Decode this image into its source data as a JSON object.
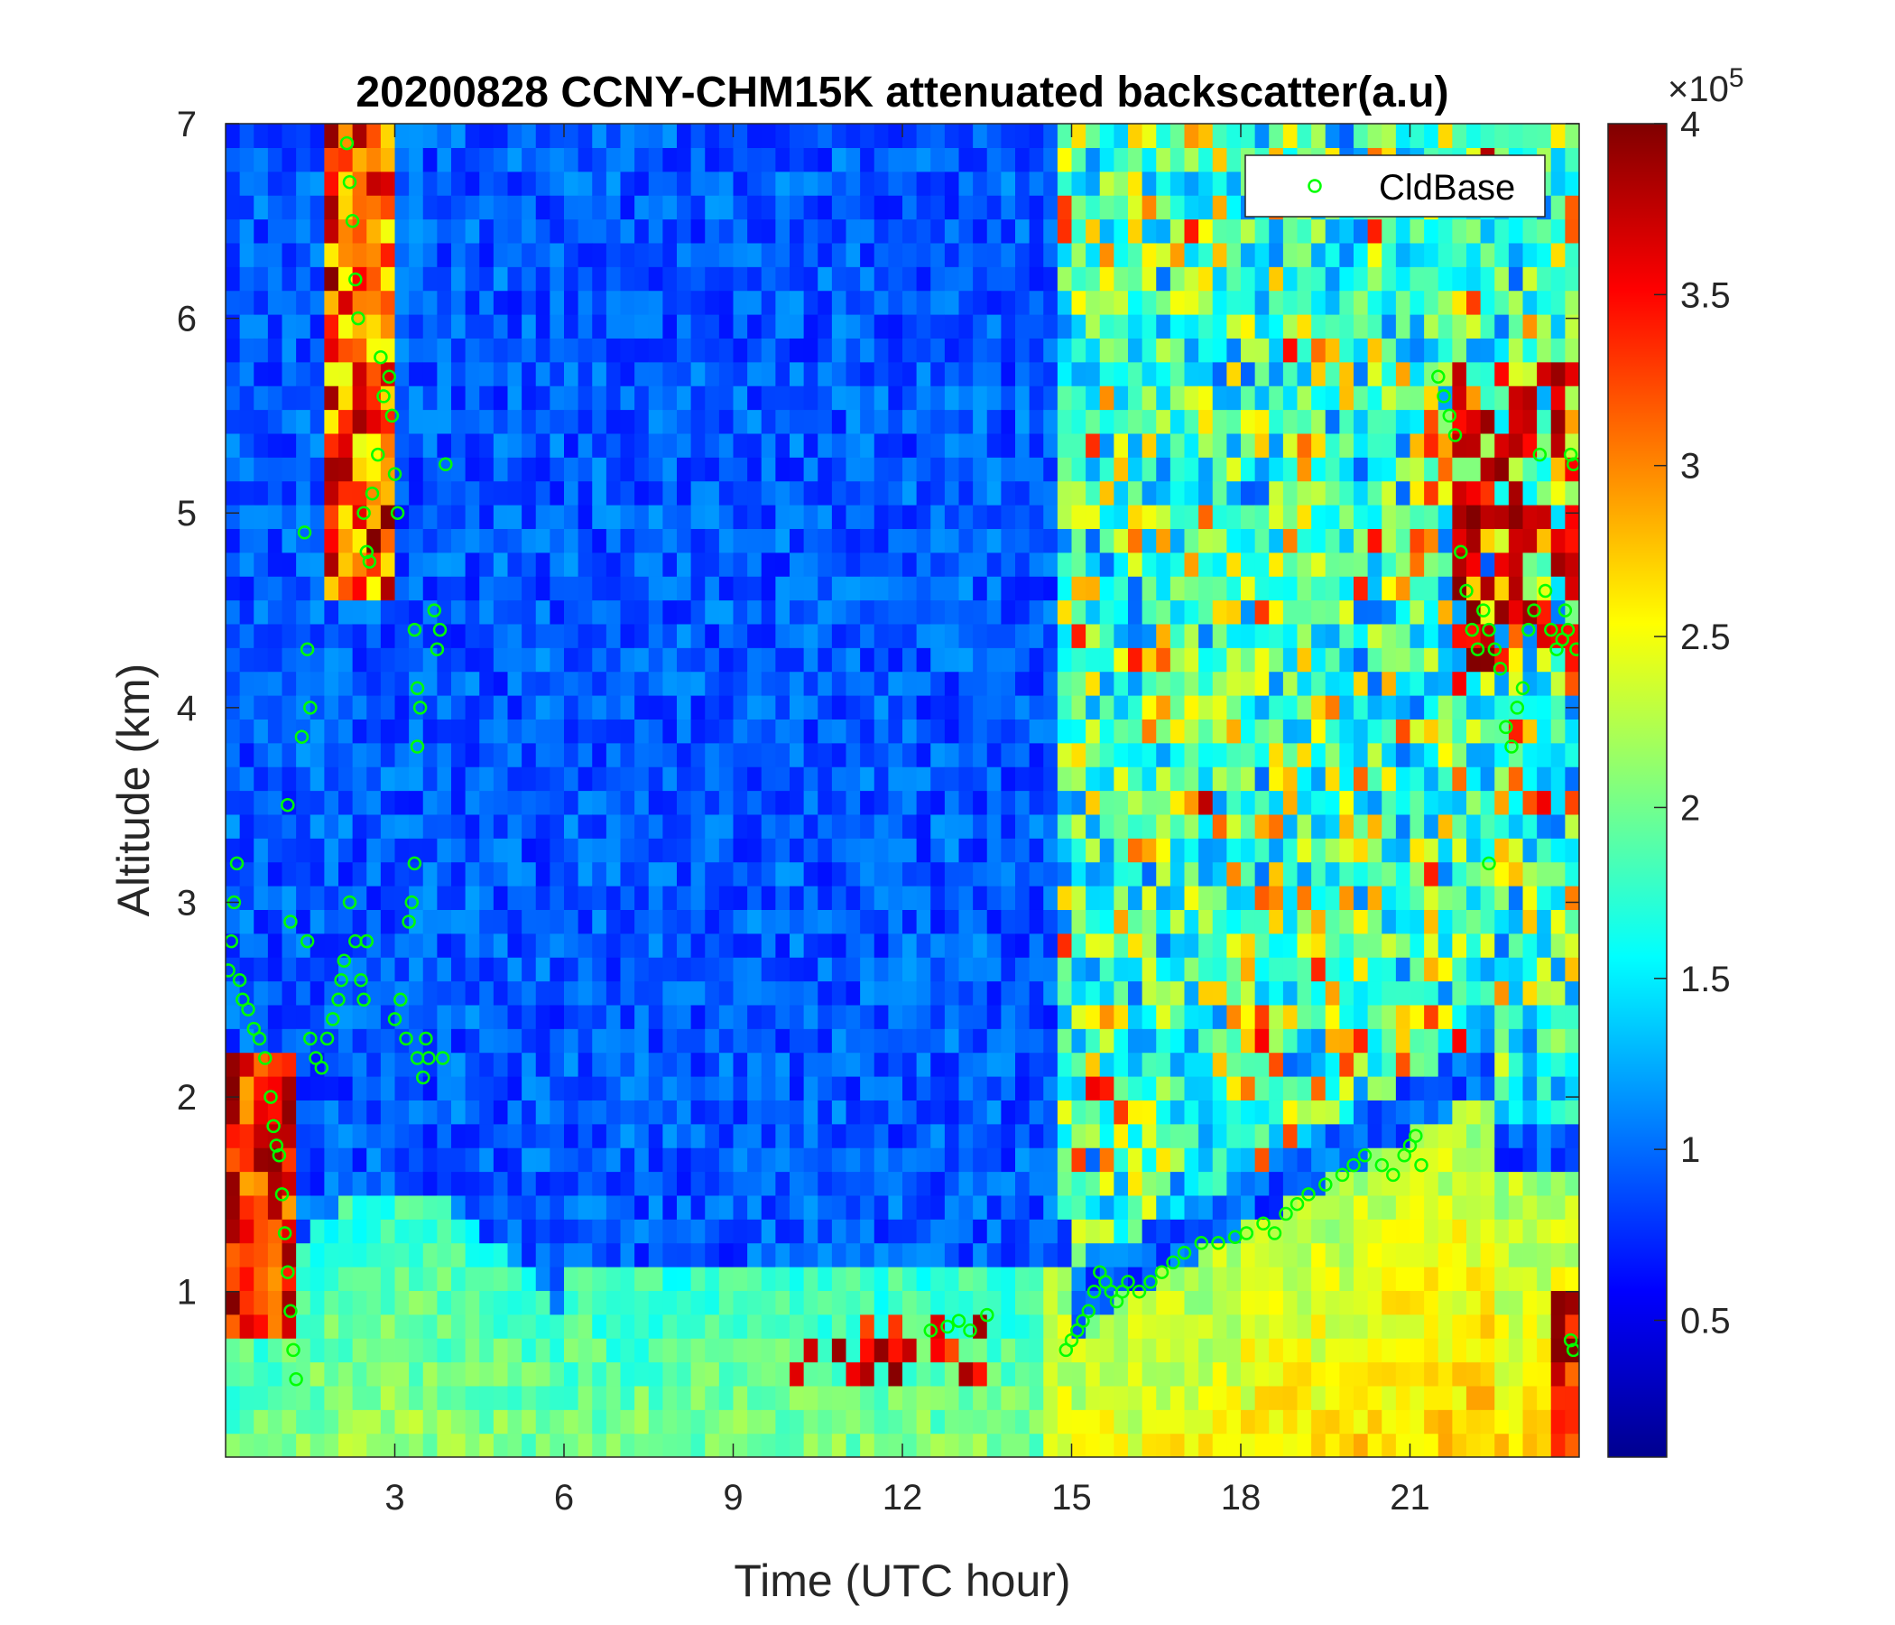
{
  "chart_data": {
    "type": "heatmap",
    "title": "20200828 CCNY-CHM15K attenuated backscatter(a.u)",
    "xlabel": "Time (UTC hour)",
    "ylabel": "Altitude (km)",
    "xlim": [
      0,
      24
    ],
    "ylim": [
      0.15,
      7
    ],
    "xticks": [
      3,
      6,
      9,
      12,
      15,
      18,
      21
    ],
    "xtick_labels": [
      "3",
      "6",
      "9",
      "12",
      "15",
      "18",
      "21"
    ],
    "yticks": [
      1,
      2,
      3,
      4,
      5,
      6,
      7
    ],
    "ytick_labels": [
      "1",
      "2",
      "3",
      "4",
      "5",
      "6",
      "7"
    ],
    "colorbar": {
      "colormap": "jet",
      "range": [
        10000,
        400000
      ],
      "ticks": [
        50000,
        100000,
        150000,
        200000,
        250000,
        300000,
        350000,
        400000
      ],
      "tick_labels": [
        "0.5",
        "1",
        "1.5",
        "2",
        "2.5",
        "3",
        "3.5",
        "4"
      ],
      "multiplier_base": "×10",
      "multiplier_exp": "5"
    },
    "legend": {
      "position": "top-right",
      "entries": [
        "CldBase"
      ]
    },
    "series": [
      {
        "name": "CldBase",
        "marker": "circle-open",
        "color": "#00ff00",
        "points": [
          [
            0.05,
            2.65
          ],
          [
            0.1,
            2.8
          ],
          [
            0.15,
            3.0
          ],
          [
            0.2,
            3.2
          ],
          [
            0.25,
            2.6
          ],
          [
            0.3,
            2.5
          ],
          [
            0.4,
            2.45
          ],
          [
            0.5,
            2.35
          ],
          [
            0.6,
            2.3
          ],
          [
            0.7,
            2.2
          ],
          [
            0.8,
            2.0
          ],
          [
            0.85,
            1.85
          ],
          [
            0.9,
            1.75
          ],
          [
            0.95,
            1.7
          ],
          [
            1.0,
            1.5
          ],
          [
            1.05,
            1.3
          ],
          [
            1.1,
            1.1
          ],
          [
            1.15,
            0.9
          ],
          [
            1.2,
            0.7
          ],
          [
            1.25,
            0.55
          ],
          [
            1.1,
            3.5
          ],
          [
            1.15,
            2.9
          ],
          [
            1.35,
            3.85
          ],
          [
            1.4,
            4.9
          ],
          [
            1.45,
            4.3
          ],
          [
            1.5,
            4.0
          ],
          [
            1.45,
            2.8
          ],
          [
            1.5,
            2.3
          ],
          [
            1.6,
            2.2
          ],
          [
            1.7,
            2.15
          ],
          [
            1.8,
            2.3
          ],
          [
            1.9,
            2.4
          ],
          [
            2.0,
            2.5
          ],
          [
            2.05,
            2.6
          ],
          [
            2.1,
            2.7
          ],
          [
            2.2,
            3.0
          ],
          [
            2.3,
            2.8
          ],
          [
            2.4,
            2.6
          ],
          [
            2.45,
            2.5
          ],
          [
            2.5,
            2.8
          ],
          [
            2.15,
            6.9
          ],
          [
            2.2,
            6.7
          ],
          [
            2.25,
            6.5
          ],
          [
            2.3,
            6.2
          ],
          [
            2.35,
            6.0
          ],
          [
            2.45,
            5.0
          ],
          [
            2.5,
            4.8
          ],
          [
            2.55,
            4.75
          ],
          [
            2.6,
            5.1
          ],
          [
            2.7,
            5.3
          ],
          [
            2.75,
            5.8
          ],
          [
            2.8,
            5.6
          ],
          [
            2.9,
            5.7
          ],
          [
            2.95,
            5.5
          ],
          [
            3.0,
            5.2
          ],
          [
            3.05,
            5.0
          ],
          [
            3.0,
            2.4
          ],
          [
            3.1,
            2.5
          ],
          [
            3.2,
            2.3
          ],
          [
            3.25,
            2.9
          ],
          [
            3.3,
            3.0
          ],
          [
            3.35,
            3.2
          ],
          [
            3.4,
            2.2
          ],
          [
            3.5,
            2.1
          ],
          [
            3.55,
            2.3
          ],
          [
            3.6,
            2.2
          ],
          [
            3.4,
            4.1
          ],
          [
            3.45,
            4.0
          ],
          [
            3.4,
            3.8
          ],
          [
            3.35,
            4.4
          ],
          [
            3.7,
            4.5
          ],
          [
            3.75,
            4.3
          ],
          [
            3.8,
            4.4
          ],
          [
            3.85,
            2.2
          ],
          [
            3.9,
            5.25
          ],
          [
            12.5,
            0.8
          ],
          [
            12.8,
            0.82
          ],
          [
            13.0,
            0.85
          ],
          [
            13.2,
            0.8
          ],
          [
            13.5,
            0.88
          ],
          [
            14.9,
            0.7
          ],
          [
            15.0,
            0.75
          ],
          [
            15.1,
            0.8
          ],
          [
            15.2,
            0.85
          ],
          [
            15.3,
            0.9
          ],
          [
            15.4,
            1.0
          ],
          [
            15.5,
            1.1
          ],
          [
            15.6,
            1.05
          ],
          [
            15.7,
            1.0
          ],
          [
            15.8,
            0.95
          ],
          [
            15.9,
            1.0
          ],
          [
            16.0,
            1.05
          ],
          [
            16.2,
            1.0
          ],
          [
            16.4,
            1.05
          ],
          [
            16.6,
            1.1
          ],
          [
            16.8,
            1.15
          ],
          [
            17.0,
            1.2
          ],
          [
            17.3,
            1.25
          ],
          [
            17.6,
            1.25
          ],
          [
            17.9,
            1.28
          ],
          [
            18.1,
            1.3
          ],
          [
            18.4,
            1.35
          ],
          [
            18.6,
            1.3
          ],
          [
            18.8,
            1.4
          ],
          [
            19.0,
            1.45
          ],
          [
            19.2,
            1.5
          ],
          [
            19.5,
            1.55
          ],
          [
            19.8,
            1.6
          ],
          [
            20.0,
            1.65
          ],
          [
            20.2,
            1.7
          ],
          [
            20.5,
            1.65
          ],
          [
            20.7,
            1.6
          ],
          [
            20.9,
            1.7
          ],
          [
            21.0,
            1.75
          ],
          [
            21.1,
            1.8
          ],
          [
            21.2,
            1.65
          ],
          [
            21.5,
            5.7
          ],
          [
            21.6,
            5.6
          ],
          [
            21.7,
            5.5
          ],
          [
            21.8,
            5.4
          ],
          [
            21.9,
            4.8
          ],
          [
            22.0,
            4.6
          ],
          [
            22.1,
            4.4
          ],
          [
            22.2,
            4.3
          ],
          [
            22.3,
            4.5
          ],
          [
            22.4,
            4.4
          ],
          [
            22.5,
            4.3
          ],
          [
            22.6,
            4.2
          ],
          [
            22.7,
            3.9
          ],
          [
            22.8,
            3.8
          ],
          [
            22.9,
            4.0
          ],
          [
            23.0,
            4.1
          ],
          [
            23.1,
            4.4
          ],
          [
            23.2,
            4.5
          ],
          [
            23.3,
            5.3
          ],
          [
            23.4,
            4.6
          ],
          [
            23.5,
            4.4
          ],
          [
            23.6,
            4.3
          ],
          [
            23.7,
            4.35
          ],
          [
            23.75,
            4.5
          ],
          [
            23.8,
            4.4
          ],
          [
            23.85,
            5.3
          ],
          [
            23.9,
            5.25
          ],
          [
            23.95,
            4.3
          ],
          [
            23.85,
            0.75
          ],
          [
            23.9,
            0.7
          ],
          [
            22.4,
            3.2
          ]
        ]
      }
    ]
  }
}
